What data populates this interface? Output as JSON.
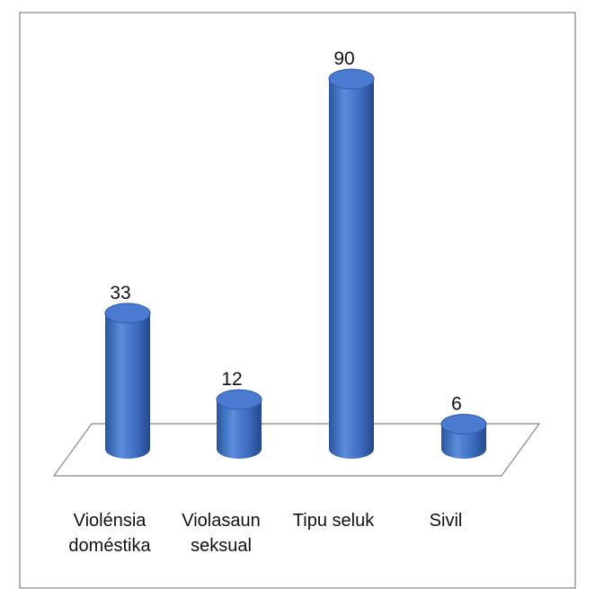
{
  "chart_data": {
    "type": "bar",
    "style": "3d-cylinder",
    "categories": [
      "Violénsia doméstika",
      "Violasaun seksual",
      "Tipu seluk",
      "Sivil"
    ],
    "values": [
      33,
      12,
      90,
      6
    ],
    "color": "#3f6fc0"
  }
}
